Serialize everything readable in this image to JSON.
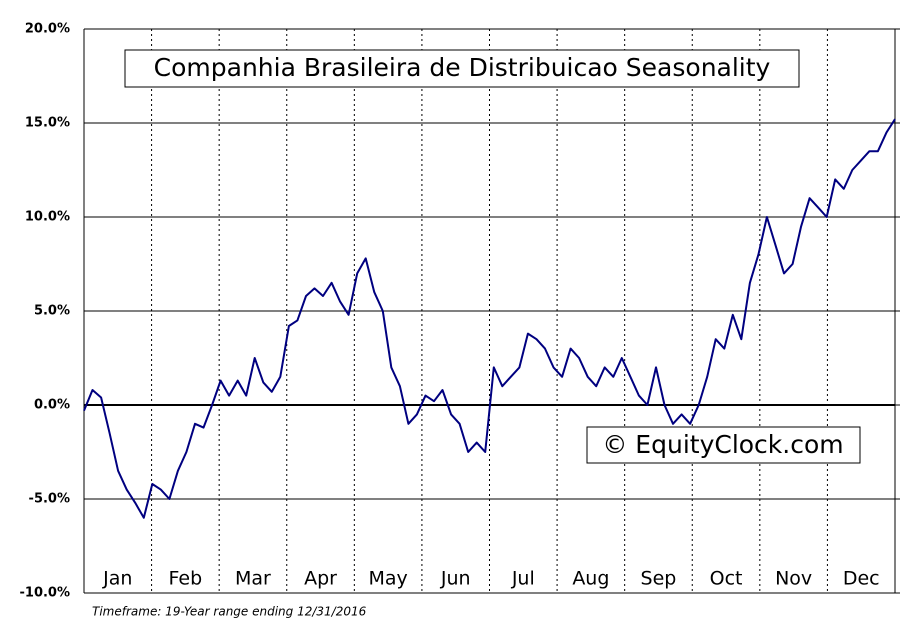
{
  "chart_data": {
    "type": "line",
    "title": "Companhia Brasileira de Distribuicao Seasonality",
    "watermark": "© EquityClock.com",
    "footnote": "Timeframe: 19-Year range ending 12/31/2016",
    "month_labels": [
      "Jan",
      "Feb",
      "Mar",
      "Apr",
      "May",
      "Jun",
      "Jul",
      "Aug",
      "Sep",
      "Oct",
      "Nov",
      "Dec"
    ],
    "series": [
      {
        "color": "#000080",
        "values": [
          -0.3,
          0.8,
          0.4,
          -1.5,
          -3.5,
          -4.5,
          -5.2,
          -6,
          -4.2,
          -4.5,
          -5,
          -3.5,
          -2.5,
          -1,
          -1.2,
          0,
          1.3,
          0.5,
          1.3,
          0.5,
          2.5,
          1.2,
          0.7,
          1.5,
          4.2,
          4.5,
          5.8,
          6.2,
          5.8,
          6.5,
          5.5,
          4.8,
          7,
          7.8,
          6,
          5,
          2,
          1,
          -1,
          -0.5,
          0.5,
          0.2,
          0.8,
          -0.5,
          -1,
          -2.5,
          -2,
          -2.5,
          2,
          1,
          1.5,
          2,
          3.8,
          3.5,
          3,
          2,
          1.5,
          3,
          2.5,
          1.5,
          1,
          2,
          1.5,
          2.5,
          1.5,
          0.5,
          0,
          2,
          0,
          -1,
          -0.5,
          -1,
          0,
          1.5,
          3.5,
          3,
          4.8,
          3.5,
          6.5,
          8,
          10,
          8.5,
          7,
          7.5,
          9.5,
          11,
          10.5,
          10,
          12,
          11.5,
          12.5,
          13,
          13.5,
          13.5,
          14.5,
          15.2
        ]
      }
    ],
    "ylim": [
      -10,
      20
    ],
    "yticks": [
      {
        "value": -10,
        "label": "-10.0%"
      },
      {
        "value": -5,
        "label": "-5.0%"
      },
      {
        "value": 0,
        "label": "0.0%"
      },
      {
        "value": 5,
        "label": "5.0%"
      },
      {
        "value": 10,
        "label": "10.0%"
      },
      {
        "value": 15,
        "label": "15.0%"
      },
      {
        "value": 20,
        "label": "20.0%"
      }
    ],
    "grid": true
  }
}
